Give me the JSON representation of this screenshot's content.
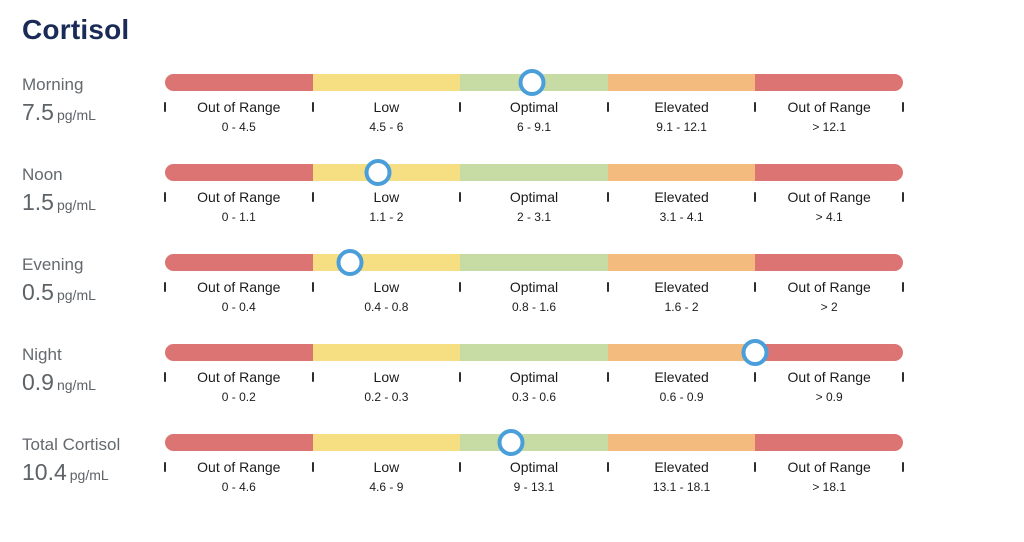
{
  "page": {
    "title": "Cortisol"
  },
  "colors": {
    "title": "#1a2b57",
    "label_gray": "#5d6367",
    "out_of_range": "#dd7474",
    "low": "#f5df82",
    "optimal": "#c6dca4",
    "elevated": "#f3bb7d",
    "marker_ring": "#4a9eda",
    "marker_fill": "#ffffff",
    "tick": "#2d2d2d"
  },
  "chart_data": {
    "type": "bar",
    "subtype": "range-gauge",
    "title": "Cortisol",
    "categories": [
      "Morning",
      "Noon",
      "Evening",
      "Night",
      "Total Cortisol"
    ],
    "values": [
      7.5,
      1.5,
      0.5,
      0.9,
      10.4
    ],
    "zone_keys": [
      "out_of_range",
      "low",
      "optimal",
      "elevated",
      "out_of_range"
    ],
    "rows": [
      {
        "period": "Morning",
        "value": "7.5",
        "unit": "pg/mL",
        "value_numeric": 7.5,
        "boundaries": [
          0,
          4.5,
          6,
          9.1,
          12.1
        ],
        "segments": [
          {
            "label": "Out of Range",
            "range": "0 - 4.5"
          },
          {
            "label": "Low",
            "range": "4.5 - 6"
          },
          {
            "label": "Optimal",
            "range": "6 - 9.1"
          },
          {
            "label": "Elevated",
            "range": "9.1 - 12.1"
          },
          {
            "label": "Out of Range",
            "range": "> 12.1"
          }
        ]
      },
      {
        "period": "Noon",
        "value": "1.5",
        "unit": "pg/mL",
        "value_numeric": 1.5,
        "boundaries": [
          0,
          1.1,
          2,
          3.1,
          4.1
        ],
        "segments": [
          {
            "label": "Out of Range",
            "range": "0 - 1.1"
          },
          {
            "label": "Low",
            "range": "1.1 - 2"
          },
          {
            "label": "Optimal",
            "range": "2 - 3.1"
          },
          {
            "label": "Elevated",
            "range": "3.1 - 4.1"
          },
          {
            "label": "Out of Range",
            "range": "> 4.1"
          }
        ]
      },
      {
        "period": "Evening",
        "value": "0.5",
        "unit": "pg/mL",
        "value_numeric": 0.5,
        "boundaries": [
          0,
          0.4,
          0.8,
          1.6,
          2
        ],
        "segments": [
          {
            "label": "Out of Range",
            "range": "0 - 0.4"
          },
          {
            "label": "Low",
            "range": "0.4 - 0.8"
          },
          {
            "label": "Optimal",
            "range": "0.8 - 1.6"
          },
          {
            "label": "Elevated",
            "range": "1.6 - 2"
          },
          {
            "label": "Out of Range",
            "range": "> 2"
          }
        ]
      },
      {
        "period": "Night",
        "value": "0.9",
        "unit": "ng/mL",
        "value_numeric": 0.9,
        "boundaries": [
          0,
          0.2,
          0.3,
          0.6,
          0.9
        ],
        "segments": [
          {
            "label": "Out of Range",
            "range": "0 - 0.2"
          },
          {
            "label": "Low",
            "range": "0.2 - 0.3"
          },
          {
            "label": "Optimal",
            "range": "0.3 - 0.6"
          },
          {
            "label": "Elevated",
            "range": "0.6 - 0.9"
          },
          {
            "label": "Out of Range",
            "range": "> 0.9"
          }
        ]
      },
      {
        "period": "Total Cortisol",
        "value": "10.4",
        "unit": "pg/mL",
        "value_numeric": 10.4,
        "boundaries": [
          0,
          4.6,
          9,
          13.1,
          18.1
        ],
        "segments": [
          {
            "label": "Out of Range",
            "range": "0 - 4.6"
          },
          {
            "label": "Low",
            "range": "4.6 - 9"
          },
          {
            "label": "Optimal",
            "range": "9 - 13.1"
          },
          {
            "label": "Elevated",
            "range": "13.1 - 18.1"
          },
          {
            "label": "Out of Range",
            "range": "> 18.1"
          }
        ]
      }
    ]
  }
}
